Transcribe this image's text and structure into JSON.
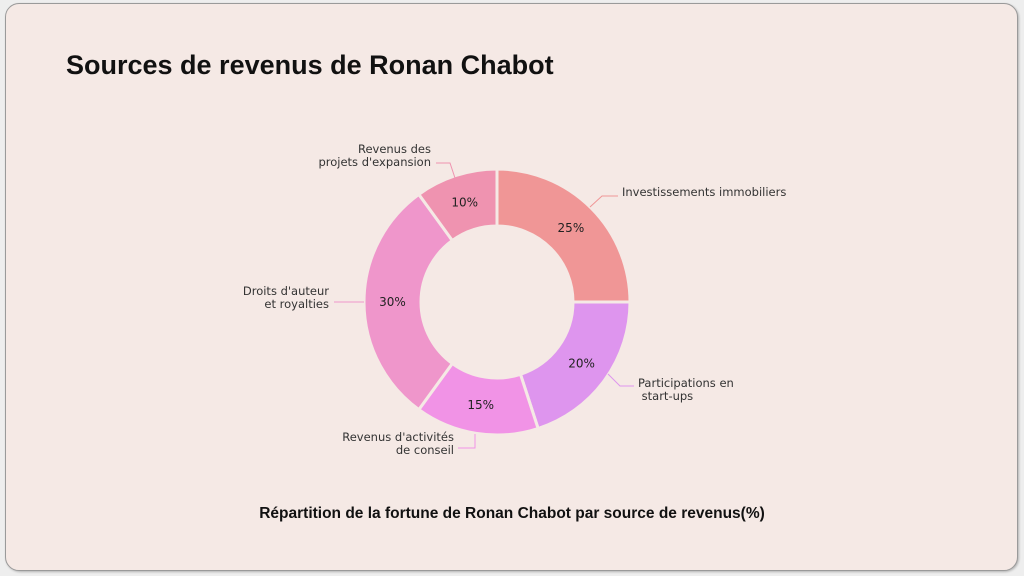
{
  "header": {
    "title": "Sources de revenus de Ronan Chabot"
  },
  "footer": {
    "caption": "Répartition de la fortune de Ronan Chabot par source de revenus(%)"
  },
  "chart_data": {
    "type": "pie",
    "variant": "donut",
    "title": "Sources de revenus de Ronan Chabot",
    "subtitle": "Répartition de la fortune de Ronan Chabot par source de revenus(%)",
    "categories": [
      "Investissements immobiliers",
      "Participations en start-ups",
      "Revenus d'activités de conseil",
      "Droits d'auteur et royalties",
      "Revenus des projets d'expansion"
    ],
    "values": [
      25,
      20,
      15,
      30,
      10
    ],
    "unit": "%",
    "colors": [
      "#f09696",
      "#de95ee",
      "#f193e6",
      "#ef96cb",
      "#ef93b0"
    ],
    "start_angle": "12 o'clock",
    "direction": "clockwise",
    "legend": "none (callout labels)"
  },
  "slices": [
    {
      "label_lines": [
        "Investissements immobiliers"
      ],
      "pct": "25%"
    },
    {
      "label_lines": [
        "Participations en",
        " start-ups"
      ],
      "pct": "20%"
    },
    {
      "label_lines": [
        "Revenus d'activités",
        "de conseil"
      ],
      "pct": "15%"
    },
    {
      "label_lines": [
        "Droits d'auteur",
        "et royalties"
      ],
      "pct": "30%"
    },
    {
      "label_lines": [
        "Revenus des",
        "projets d'expansion"
      ],
      "pct": "10%"
    }
  ]
}
